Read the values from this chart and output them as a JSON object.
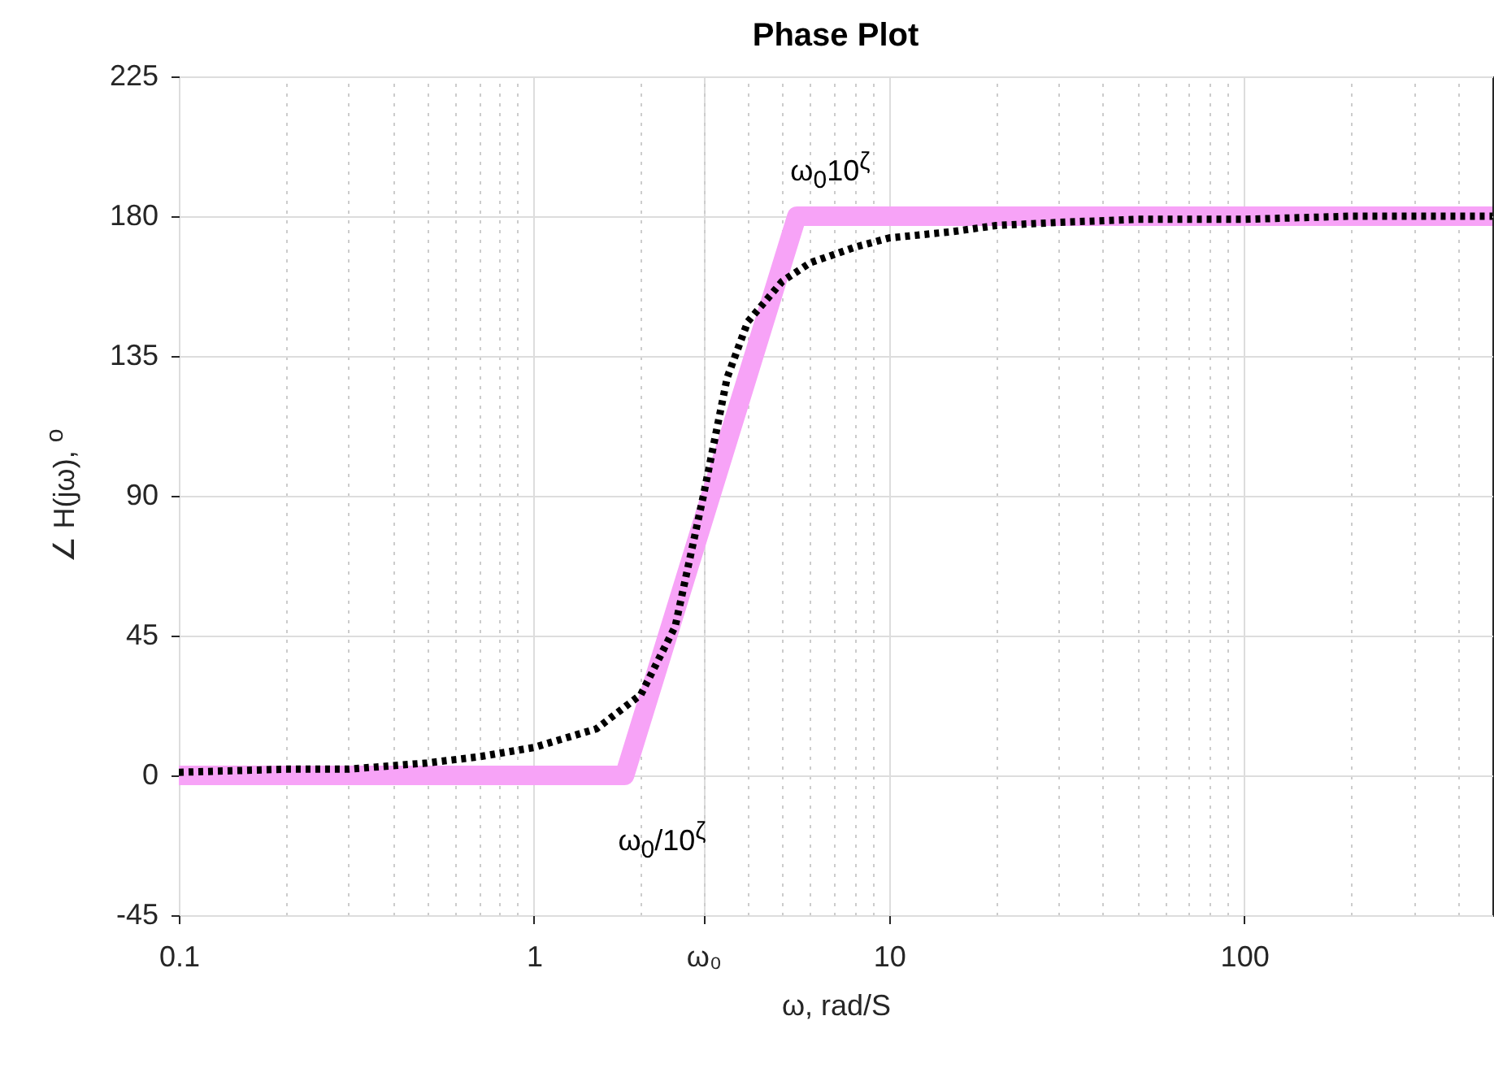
{
  "chart_data": {
    "type": "line",
    "title": "Phase Plot",
    "xlabel": "ω, rad/S",
    "ylabel": "∠ H(jω), $^{o}$",
    "log": "x",
    "xlim": [
      0.1,
      500
    ],
    "xticks": [
      0.1,
      1,
      {
        "value": 3,
        "label": "ω₀"
      },
      10,
      100
    ],
    "ylim": [
      -45,
      225
    ],
    "yticks": [
      -45,
      0,
      45,
      90,
      135,
      180,
      225
    ],
    "grid": true,
    "series": [
      {
        "color": "#f7a3f7",
        "line_style": "solid",
        "x": [
          0.1,
          1.8,
          5.5,
          500
        ],
        "values": [
          0,
          0,
          180,
          180
        ]
      },
      {
        "color": "#000000",
        "line_style": "dotted",
        "x": [
          0.1,
          0.2,
          0.3,
          0.5,
          0.7,
          1,
          1.5,
          2,
          2.5,
          3,
          3.5,
          4,
          5,
          6,
          8,
          10,
          15,
          20,
          30,
          50,
          100,
          200,
          500
        ],
        "values": [
          1,
          2,
          2,
          4,
          6,
          9,
          15,
          26,
          48,
          90,
          128,
          146,
          159,
          165,
          170,
          173,
          175,
          177,
          178,
          179,
          179,
          180,
          180
        ]
      }
    ],
    "annotations": [
      {
        "text": "ω$_{0}$10$^{ζ}$",
        "x": 5.5,
        "y": 180
      },
      {
        "text": "ω$_{0}$/10$^{ζ}$",
        "x": 1.8,
        "y": 0
      }
    ]
  }
}
